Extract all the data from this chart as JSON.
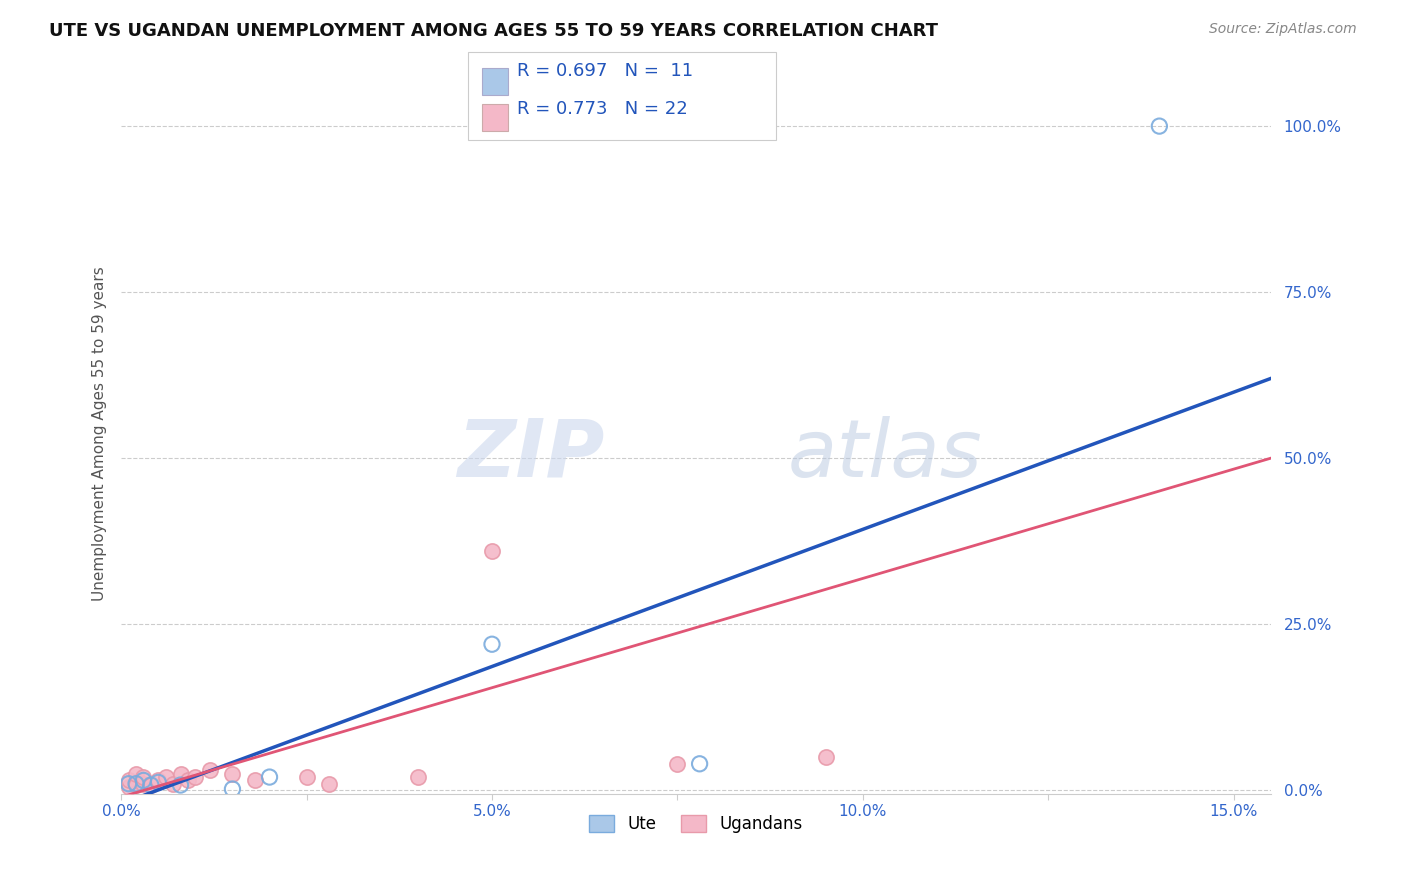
{
  "title": "UTE VS UGANDAN UNEMPLOYMENT AMONG AGES 55 TO 59 YEARS CORRELATION CHART",
  "source": "Source: ZipAtlas.com",
  "ylabel": "Unemployment Among Ages 55 to 59 years",
  "xlim": [
    0.0,
    0.155
  ],
  "ylim": [
    -0.005,
    1.08
  ],
  "xticks": [
    0.0,
    0.025,
    0.05,
    0.075,
    0.1,
    0.125,
    0.15
  ],
  "xticklabels": [
    "0.0%",
    "",
    "5.0%",
    "",
    "10.0%",
    "",
    "15.0%"
  ],
  "yticks": [
    0.0,
    0.25,
    0.5,
    0.75,
    1.0
  ],
  "yticklabels": [
    "0.0%",
    "25.0%",
    "50.0%",
    "75.0%",
    "100.0%"
  ],
  "grid_color": "#cccccc",
  "background_color": "#ffffff",
  "ute_fill_color": "#aac8e8",
  "ute_edge_color": "#7aabdd",
  "ugandan_fill_color": "#f4b8c8",
  "ugandan_edge_color": "#e89aaa",
  "ute_line_color": "#2255bb",
  "ugandan_line_color": "#e05575",
  "legend_r_ute": "R = 0.697",
  "legend_n_ute": "N =  11",
  "legend_r_ugandan": "R = 0.773",
  "legend_n_ugandan": "N = 22",
  "legend_label_ute": "Ute",
  "legend_label_ugandan": "Ugandans",
  "watermark_zip": "ZIP",
  "watermark_atlas": "atlas",
  "ute_x": [
    0.001,
    0.002,
    0.003,
    0.004,
    0.005,
    0.008,
    0.015,
    0.02,
    0.05,
    0.078,
    0.14
  ],
  "ute_y": [
    0.01,
    0.01,
    0.015,
    0.008,
    0.012,
    0.008,
    0.002,
    0.02,
    0.22,
    0.04,
    1.0
  ],
  "ugandan_x": [
    0.001,
    0.001,
    0.002,
    0.002,
    0.003,
    0.003,
    0.004,
    0.005,
    0.006,
    0.007,
    0.008,
    0.009,
    0.01,
    0.012,
    0.015,
    0.018,
    0.025,
    0.028,
    0.04,
    0.05,
    0.075,
    0.095
  ],
  "ugandan_y": [
    0.005,
    0.015,
    0.008,
    0.025,
    0.01,
    0.02,
    0.008,
    0.015,
    0.02,
    0.01,
    0.025,
    0.015,
    0.02,
    0.03,
    0.025,
    0.015,
    0.02,
    0.01,
    0.02,
    0.36,
    0.04,
    0.05
  ],
  "marker_size": 120,
  "ute_line_x0": 0.0,
  "ute_line_y0": -0.02,
  "ute_line_x1": 0.155,
  "ute_line_y1": 0.62,
  "ugandan_line_x0": 0.0,
  "ugandan_line_y0": -0.01,
  "ugandan_line_x1": 0.155,
  "ugandan_line_y1": 0.5
}
